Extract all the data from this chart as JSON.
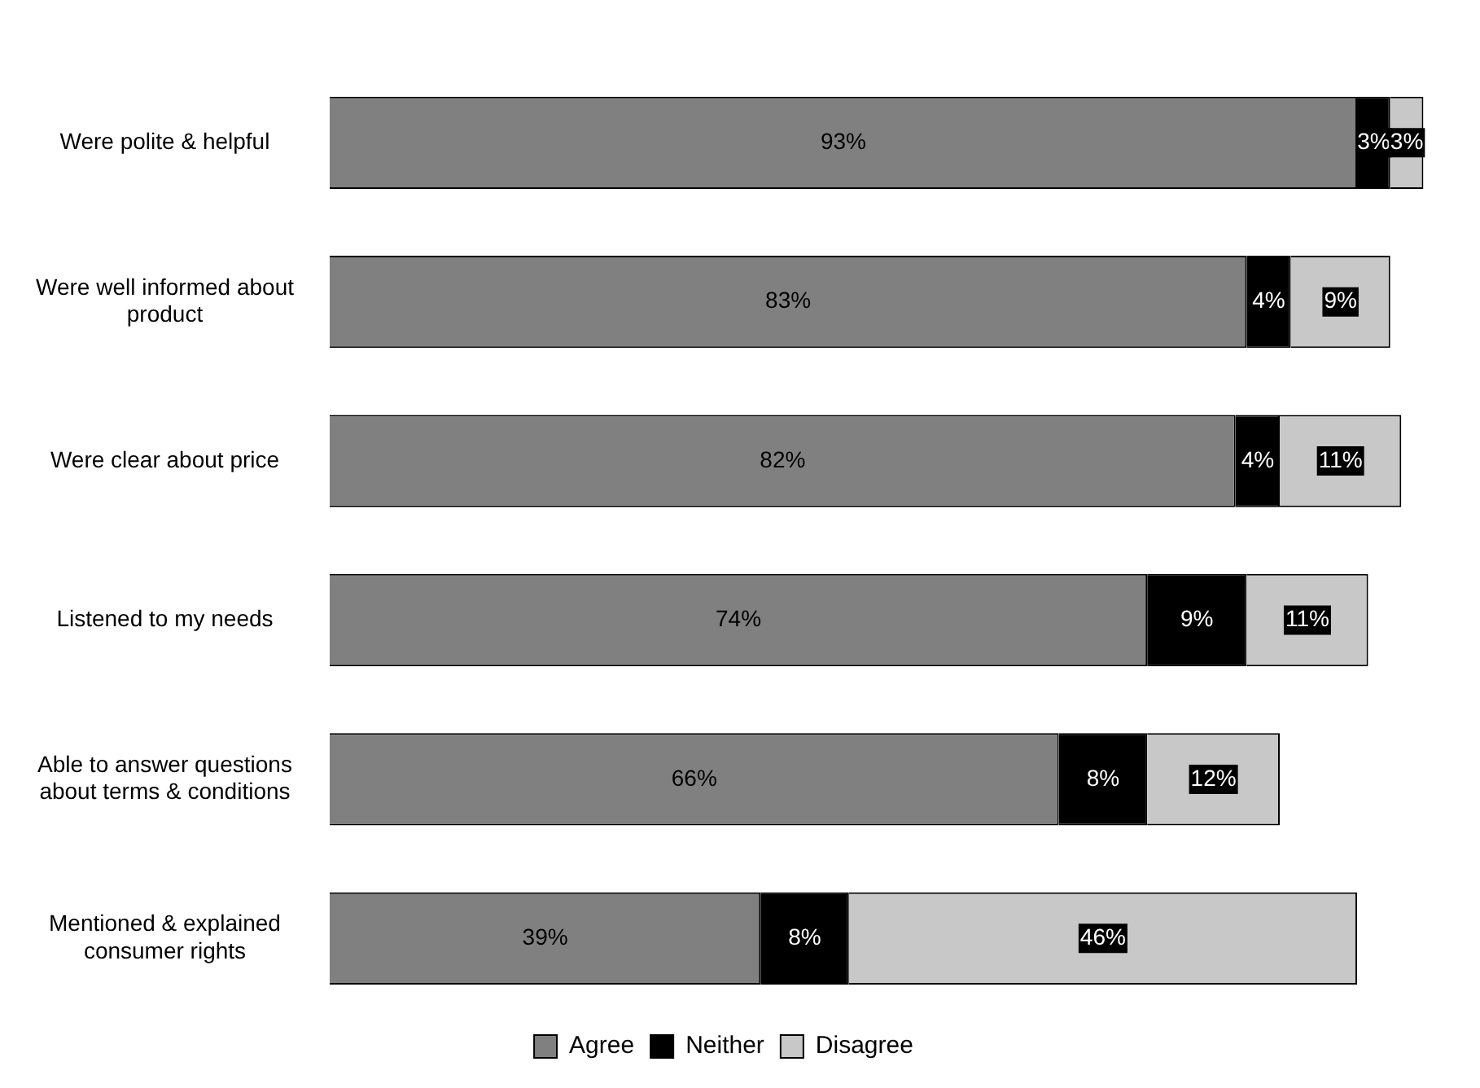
{
  "chart_data": {
    "type": "bar",
    "orientation": "horizontal",
    "stacked": true,
    "legend": "bottom",
    "grid": false,
    "tick_labels": "y",
    "categories": [
      "Were polite & helpful",
      "Were well informed about product",
      "Were clear about price",
      "Listened to my needs",
      "Able to answer questions about terms & conditions",
      "Mentioned & explained consumer rights"
    ],
    "series": [
      {
        "name": "Agree",
        "color": "#808080",
        "values": [
          93,
          83,
          82,
          74,
          66,
          39
        ],
        "value_labels": [
          "93%",
          "83%",
          "82%",
          "74%",
          "66%",
          "39%"
        ]
      },
      {
        "name": "Neither",
        "color": "#000000",
        "values": [
          3,
          4,
          4,
          9,
          8,
          8
        ],
        "value_labels": [
          "3%",
          "4%",
          "4%",
          "9%",
          "8%",
          "8%"
        ]
      },
      {
        "name": "Disagree",
        "color": "#c8c8c8",
        "values": [
          3,
          9,
          11,
          11,
          12,
          46
        ],
        "value_labels": [
          "3%",
          "9%",
          "11%",
          "11%",
          "12%",
          "46%"
        ]
      }
    ]
  }
}
